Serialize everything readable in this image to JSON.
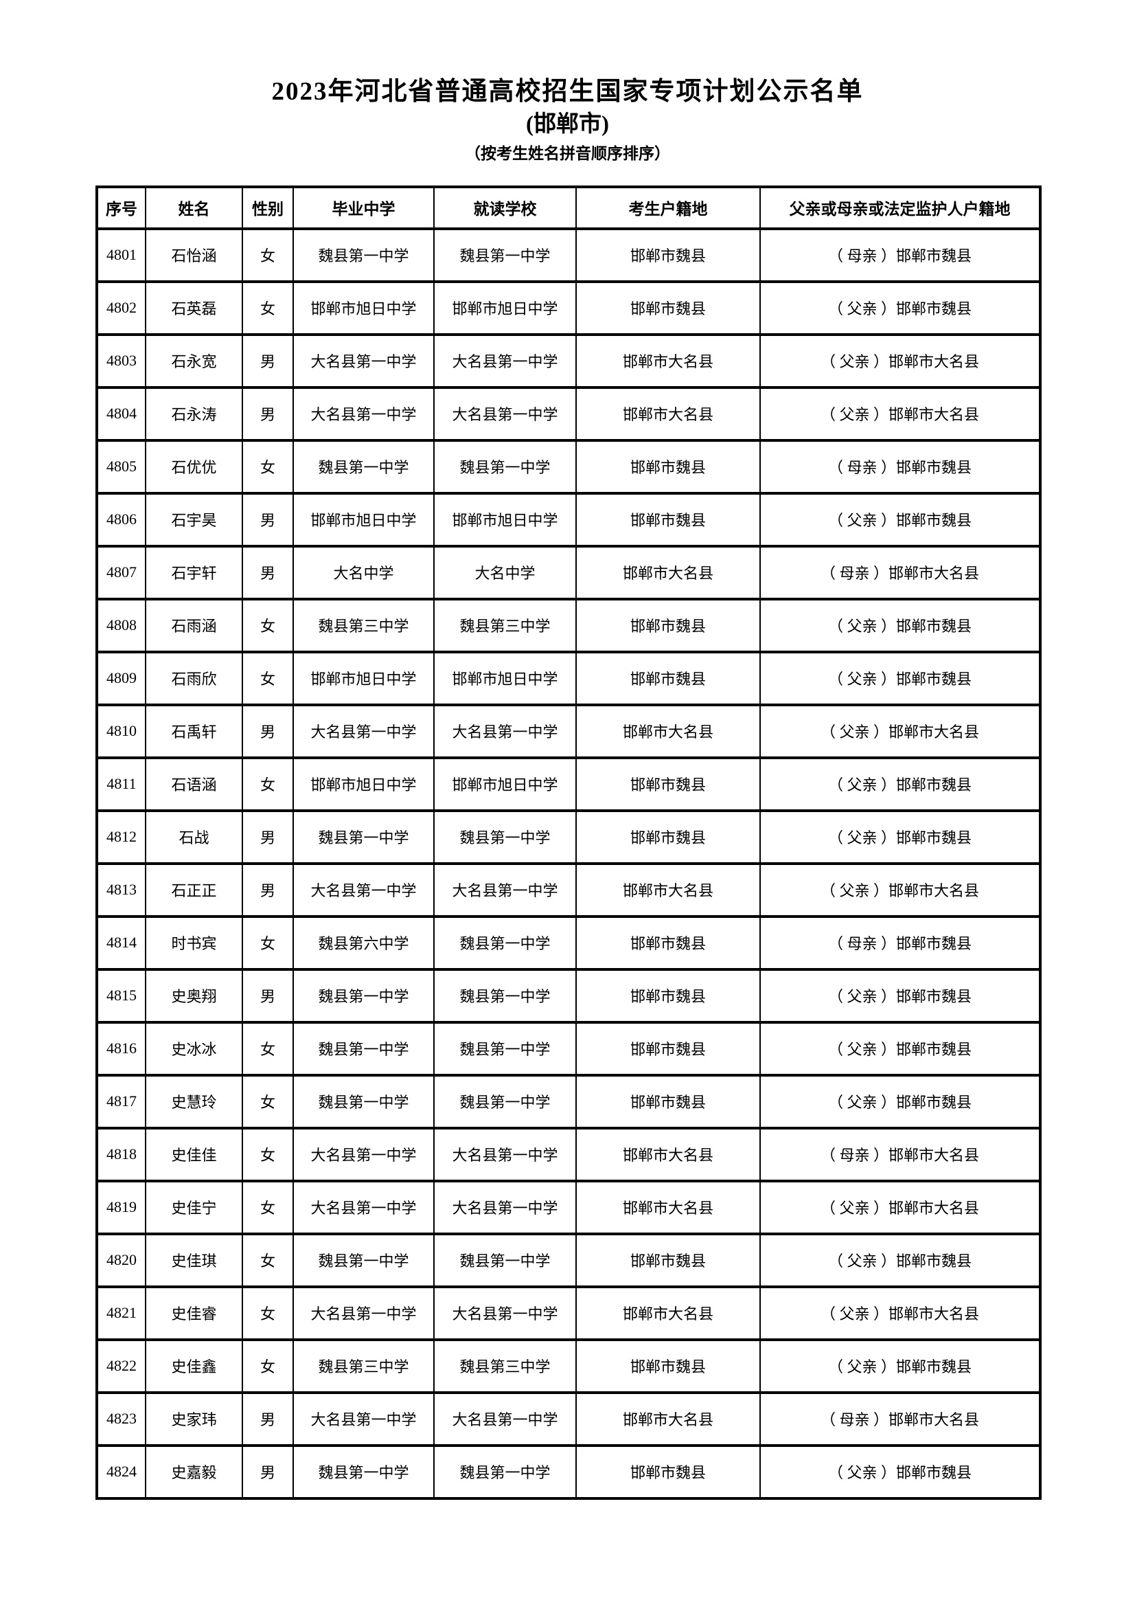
{
  "document": {
    "title": "2023年河北省普通高校招生国家专项计划公示名单",
    "subtitle_city": "(邯郸市)",
    "subtitle_note": "（按考生姓名拼音顺序排序）"
  },
  "table": {
    "headers": [
      "序号",
      "姓名",
      "性别",
      "毕业中学",
      "就读学校",
      "考生户籍地",
      "父亲或母亲或法定监护人户籍地"
    ],
    "column_keys": [
      "no",
      "name",
      "gender",
      "graduated_school",
      "attending_school",
      "residence",
      "guardian_residence"
    ],
    "rows": [
      {
        "no": "4801",
        "name": "石怡涵",
        "gender": "女",
        "graduated_school": "魏县第一中学",
        "attending_school": "魏县第一中学",
        "residence": "邯郸市魏县",
        "guardian_residence": "（ 母亲 ）邯郸市魏县"
      },
      {
        "no": "4802",
        "name": "石英磊",
        "gender": "女",
        "graduated_school": "邯郸市旭日中学",
        "attending_school": "邯郸市旭日中学",
        "residence": "邯郸市魏县",
        "guardian_residence": "（ 父亲 ）邯郸市魏县"
      },
      {
        "no": "4803",
        "name": "石永宽",
        "gender": "男",
        "graduated_school": "大名县第一中学",
        "attending_school": "大名县第一中学",
        "residence": "邯郸市大名县",
        "guardian_residence": "（ 父亲 ）邯郸市大名县"
      },
      {
        "no": "4804",
        "name": "石永涛",
        "gender": "男",
        "graduated_school": "大名县第一中学",
        "attending_school": "大名县第一中学",
        "residence": "邯郸市大名县",
        "guardian_residence": "（ 父亲 ）邯郸市大名县"
      },
      {
        "no": "4805",
        "name": "石优优",
        "gender": "女",
        "graduated_school": "魏县第一中学",
        "attending_school": "魏县第一中学",
        "residence": "邯郸市魏县",
        "guardian_residence": "（ 母亲 ）邯郸市魏县"
      },
      {
        "no": "4806",
        "name": "石宇昊",
        "gender": "男",
        "graduated_school": "邯郸市旭日中学",
        "attending_school": "邯郸市旭日中学",
        "residence": "邯郸市魏县",
        "guardian_residence": "（ 父亲 ）邯郸市魏县"
      },
      {
        "no": "4807",
        "name": "石宇轩",
        "gender": "男",
        "graduated_school": "大名中学",
        "attending_school": "大名中学",
        "residence": "邯郸市大名县",
        "guardian_residence": "（ 母亲 ）邯郸市大名县"
      },
      {
        "no": "4808",
        "name": "石雨涵",
        "gender": "女",
        "graduated_school": "魏县第三中学",
        "attending_school": "魏县第三中学",
        "residence": "邯郸市魏县",
        "guardian_residence": "（ 父亲 ）邯郸市魏县"
      },
      {
        "no": "4809",
        "name": "石雨欣",
        "gender": "女",
        "graduated_school": "邯郸市旭日中学",
        "attending_school": "邯郸市旭日中学",
        "residence": "邯郸市魏县",
        "guardian_residence": "（ 父亲 ）邯郸市魏县"
      },
      {
        "no": "4810",
        "name": "石禹轩",
        "gender": "男",
        "graduated_school": "大名县第一中学",
        "attending_school": "大名县第一中学",
        "residence": "邯郸市大名县",
        "guardian_residence": "（ 父亲 ）邯郸市大名县"
      },
      {
        "no": "4811",
        "name": "石语涵",
        "gender": "女",
        "graduated_school": "邯郸市旭日中学",
        "attending_school": "邯郸市旭日中学",
        "residence": "邯郸市魏县",
        "guardian_residence": "（ 父亲 ）邯郸市魏县"
      },
      {
        "no": "4812",
        "name": "石战",
        "gender": "男",
        "graduated_school": "魏县第一中学",
        "attending_school": "魏县第一中学",
        "residence": "邯郸市魏县",
        "guardian_residence": "（ 父亲 ）邯郸市魏县"
      },
      {
        "no": "4813",
        "name": "石正正",
        "gender": "男",
        "graduated_school": "大名县第一中学",
        "attending_school": "大名县第一中学",
        "residence": "邯郸市大名县",
        "guardian_residence": "（ 父亲 ）邯郸市大名县"
      },
      {
        "no": "4814",
        "name": "时书宾",
        "gender": "女",
        "graduated_school": "魏县第六中学",
        "attending_school": "魏县第一中学",
        "residence": "邯郸市魏县",
        "guardian_residence": "（ 母亲 ）邯郸市魏县"
      },
      {
        "no": "4815",
        "name": "史奥翔",
        "gender": "男",
        "graduated_school": "魏县第一中学",
        "attending_school": "魏县第一中学",
        "residence": "邯郸市魏县",
        "guardian_residence": "（ 父亲 ）邯郸市魏县"
      },
      {
        "no": "4816",
        "name": "史冰冰",
        "gender": "女",
        "graduated_school": "魏县第一中学",
        "attending_school": "魏县第一中学",
        "residence": "邯郸市魏县",
        "guardian_residence": "（ 父亲 ）邯郸市魏县"
      },
      {
        "no": "4817",
        "name": "史慧玲",
        "gender": "女",
        "graduated_school": "魏县第一中学",
        "attending_school": "魏县第一中学",
        "residence": "邯郸市魏县",
        "guardian_residence": "（ 父亲 ）邯郸市魏县"
      },
      {
        "no": "4818",
        "name": "史佳佳",
        "gender": "女",
        "graduated_school": "大名县第一中学",
        "attending_school": "大名县第一中学",
        "residence": "邯郸市大名县",
        "guardian_residence": "（ 母亲 ）邯郸市大名县"
      },
      {
        "no": "4819",
        "name": "史佳宁",
        "gender": "女",
        "graduated_school": "大名县第一中学",
        "attending_school": "大名县第一中学",
        "residence": "邯郸市大名县",
        "guardian_residence": "（ 父亲 ）邯郸市大名县"
      },
      {
        "no": "4820",
        "name": "史佳琪",
        "gender": "女",
        "graduated_school": "魏县第一中学",
        "attending_school": "魏县第一中学",
        "residence": "邯郸市魏县",
        "guardian_residence": "（ 父亲 ）邯郸市魏县"
      },
      {
        "no": "4821",
        "name": "史佳睿",
        "gender": "女",
        "graduated_school": "大名县第一中学",
        "attending_school": "大名县第一中学",
        "residence": "邯郸市大名县",
        "guardian_residence": "（ 父亲 ）邯郸市大名县"
      },
      {
        "no": "4822",
        "name": "史佳鑫",
        "gender": "女",
        "graduated_school": "魏县第三中学",
        "attending_school": "魏县第三中学",
        "residence": "邯郸市魏县",
        "guardian_residence": "（ 父亲 ）邯郸市魏县"
      },
      {
        "no": "4823",
        "name": "史家玮",
        "gender": "男",
        "graduated_school": "大名县第一中学",
        "attending_school": "大名县第一中学",
        "residence": "邯郸市大名县",
        "guardian_residence": "（ 母亲 ）邯郸市大名县"
      },
      {
        "no": "4824",
        "name": "史嘉毅",
        "gender": "男",
        "graduated_school": "魏县第一中学",
        "attending_school": "魏县第一中学",
        "residence": "邯郸市魏县",
        "guardian_residence": "（ 父亲 ）邯郸市魏县"
      }
    ]
  }
}
